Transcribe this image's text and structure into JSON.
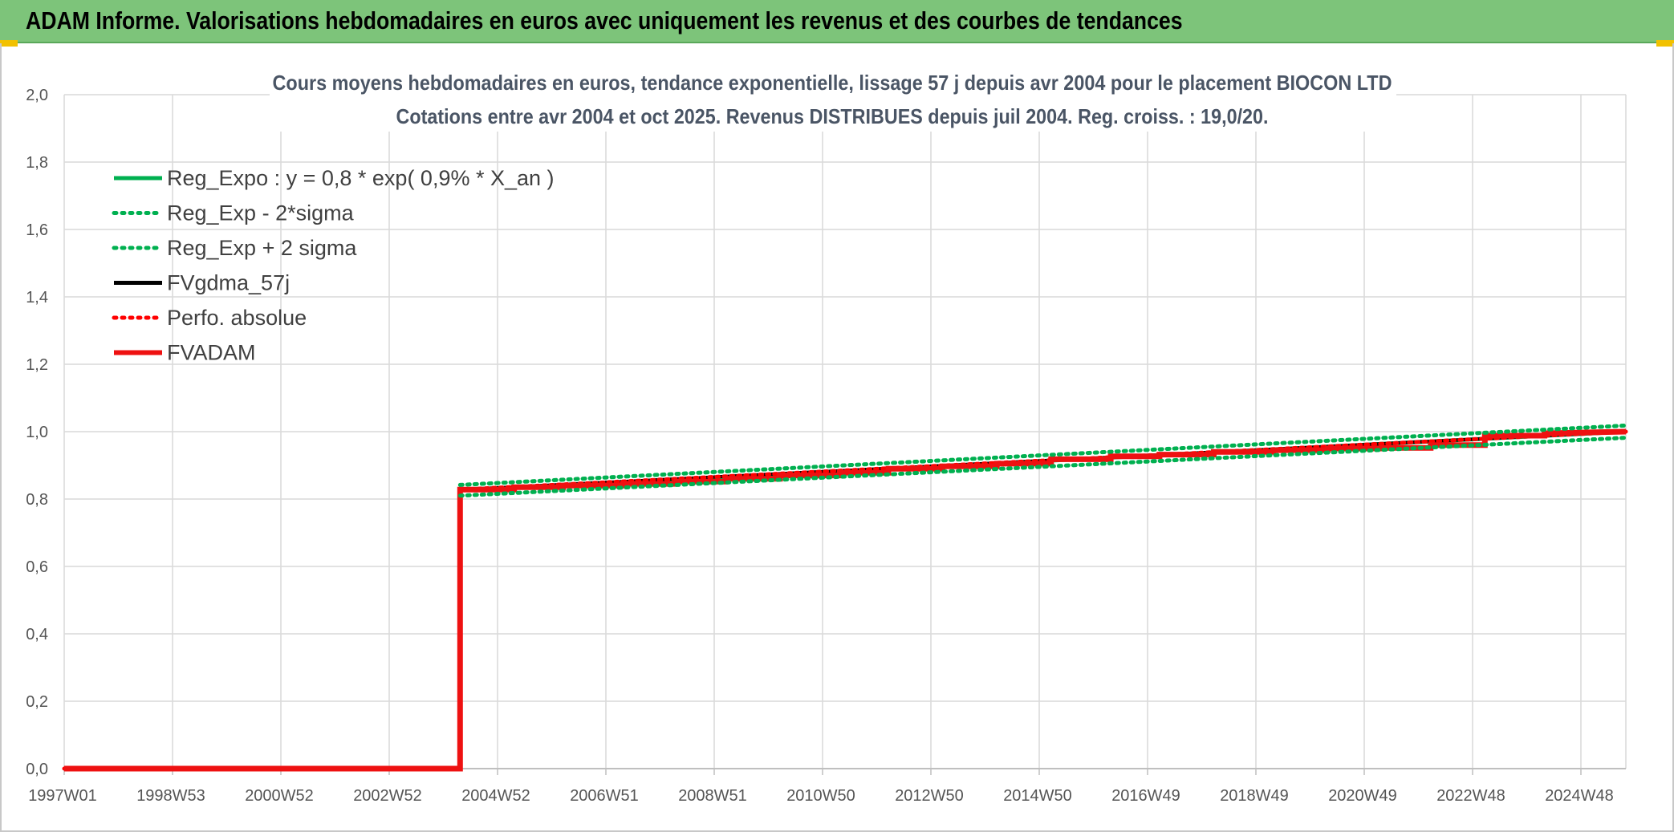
{
  "header": {
    "title": "ADAM Informe. Valorisations hebdomadaires en euros avec uniquement les revenus et des courbes de tendances"
  },
  "colors": {
    "banner": "#7dc47a",
    "reg_expo": "#00b050",
    "fvgdma": "#000000",
    "perfo": "#ff0000",
    "fvadam": "#ee1111"
  },
  "chart_data": {
    "type": "line",
    "title_lines": [
      "Cours moyens hebdomadaires en euros, tendance exponentielle, lissage 57 j depuis avr 2004 pour le placement BIOCON LTD",
      "Cotations entre avr 2004 et oct 2025. Revenus DISTRIBUES depuis juil 2004. Reg. croiss. : 19,0/20."
    ],
    "x_tick_labels": [
      "1997W01",
      "1998W53",
      "2000W52",
      "2002W52",
      "2004W52",
      "2006W51",
      "2008W51",
      "2010W50",
      "2012W50",
      "2014W50",
      "2016W49",
      "2018W49",
      "2020W49",
      "2022W48",
      "2024W48"
    ],
    "x_range": [
      1997.0,
      2025.8
    ],
    "ylim": [
      0,
      2
    ],
    "y_tick_labels": [
      "0,0",
      "0,2",
      "0,4",
      "0,6",
      "0,8",
      "1,0",
      "1,2",
      "1,4",
      "1,6",
      "1,8",
      "2,0"
    ],
    "y_ticks": [
      0,
      0.2,
      0.4,
      0.6,
      0.8,
      1.0,
      1.2,
      1.4,
      1.6,
      1.8,
      2.0
    ],
    "grid": true,
    "legend_position": "top-left",
    "series": [
      {
        "name": "Reg_Expo : y = 0,8 * exp( 0,9% *  X_an )",
        "color": "#00b050",
        "style": "solid",
        "x": [
          2004.3,
          2025.8
        ],
        "y": [
          0.826,
          1.0
        ]
      },
      {
        "name": "Reg_Exp - 2*sigma",
        "color": "#00b050",
        "style": "dotted",
        "x": [
          2004.3,
          2025.8
        ],
        "y": [
          0.81,
          0.982
        ]
      },
      {
        "name": "Reg_Exp + 2 sigma",
        "color": "#00b050",
        "style": "dotted",
        "x": [
          2004.3,
          2025.8
        ],
        "y": [
          0.842,
          1.018
        ]
      },
      {
        "name": "FVgdma_57j",
        "color": "#000000",
        "style": "solid",
        "x": [
          1997.0,
          2004.3,
          2004.3,
          2025.8
        ],
        "y": [
          0.0,
          0.0,
          0.828,
          1.0
        ]
      },
      {
        "name": "Perfo. absolue",
        "color": "#ff0000",
        "style": "dotted",
        "x": [
          1997.0,
          2004.3,
          2004.3,
          2025.8
        ],
        "y": [
          0.0,
          0.0,
          0.828,
          1.0
        ]
      },
      {
        "name": "FVADAM",
        "color": "#ee1111",
        "style": "step",
        "x": [
          1997.0,
          2004.3,
          2004.3,
          2005.3,
          2005.3,
          2006.2,
          2006.2,
          2007.3,
          2007.3,
          2008.3,
          2008.3,
          2009.2,
          2009.2,
          2010.2,
          2010.2,
          2011.3,
          2011.3,
          2012.2,
          2012.2,
          2013.2,
          2013.2,
          2014.2,
          2014.2,
          2015.2,
          2015.2,
          2016.3,
          2016.3,
          2017.2,
          2017.2,
          2018.2,
          2018.2,
          2019.3,
          2019.3,
          2020.3,
          2020.3,
          2021.3,
          2021.3,
          2022.2,
          2022.2,
          2023.2,
          2023.2,
          2024.3,
          2024.3,
          2025.8
        ],
        "y": [
          0.0,
          0.0,
          0.828,
          0.828,
          0.835,
          0.835,
          0.84,
          0.84,
          0.845,
          0.845,
          0.852,
          0.852,
          0.86,
          0.86,
          0.87,
          0.87,
          0.878,
          0.878,
          0.89,
          0.89,
          0.897,
          0.897,
          0.905,
          0.905,
          0.918,
          0.918,
          0.927,
          0.927,
          0.932,
          0.932,
          0.94,
          0.94,
          0.945,
          0.945,
          0.95,
          0.95,
          0.952,
          0.952,
          0.96,
          0.96,
          0.988,
          0.988,
          0.995,
          1.0
        ]
      }
    ]
  }
}
